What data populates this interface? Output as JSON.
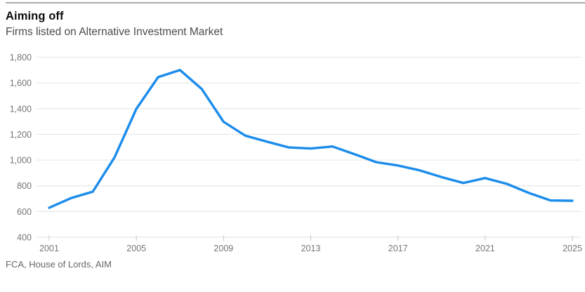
{
  "header": {
    "title": "Aiming off",
    "subtitle": "Firms listed on Alternative Investment Market"
  },
  "source": "FCA, House of Lords, AIM",
  "colors": {
    "line": "#1b8ceb",
    "grid": "#e7e7e7",
    "tick": "#c9c9c9",
    "axis_text": "#757575",
    "title_text": "#0c0c0c",
    "subtitle_text": "#4b4b4b",
    "source_text": "#666666",
    "top_rule": "#aaaaaa",
    "background": "#ffffff"
  },
  "chart_data": {
    "type": "line",
    "title": "Aiming off",
    "subtitle": "Firms listed on Alternative Investment Market",
    "xlabel": "",
    "ylabel": "",
    "x": [
      2001,
      2002,
      2003,
      2004,
      2005,
      2006,
      2007,
      2008,
      2009,
      2010,
      2011,
      2012,
      2013,
      2014,
      2015,
      2016,
      2017,
      2018,
      2019,
      2020,
      2021,
      2022,
      2023,
      2024,
      2025
    ],
    "series": [
      {
        "name": "Firms listed on Alternative Investment Market",
        "values": [
          629,
          704,
          754,
          1021,
          1399,
          1645,
          1700,
          1553,
          1298,
          1190,
          1143,
          1098,
          1090,
          1106,
          1046,
          984,
          958,
          920,
          868,
          822,
          860,
          815,
          745,
          686,
          684
        ]
      }
    ],
    "ylim": [
      400,
      1800
    ],
    "y_ticks": [
      400,
      600,
      800,
      1000,
      1200,
      1400,
      1600,
      1800
    ],
    "y_tick_labels": [
      "400",
      "600",
      "800",
      "1,000",
      "1,200",
      "1,400",
      "1,600",
      "1,800"
    ],
    "x_ticks": [
      2001,
      2005,
      2009,
      2013,
      2017,
      2021,
      2025
    ],
    "x_tick_labels": [
      "2001",
      "2005",
      "2009",
      "2013",
      "2017",
      "2021",
      "2025"
    ],
    "grid": "horizontal",
    "legend": "none",
    "source": "FCA, House of Lords, AIM"
  }
}
